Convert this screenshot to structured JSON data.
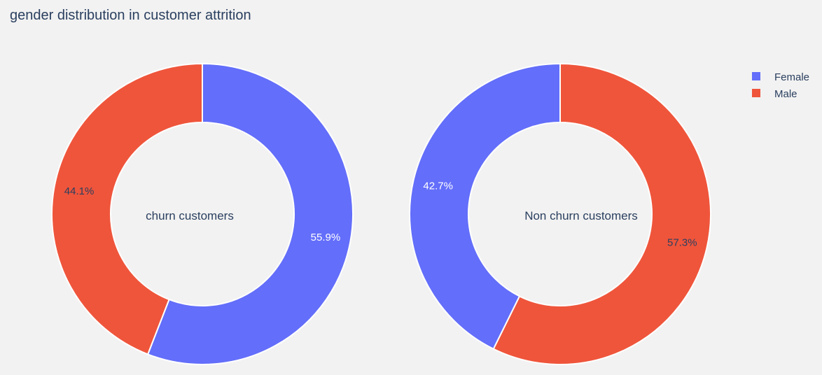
{
  "title": "gender distribution in customer attrition",
  "colors": {
    "Female": "#636efa",
    "Male": "#ef553b",
    "background": "#f2f2f2",
    "text": "#2a3f5f"
  },
  "legend": {
    "placement": "top-right",
    "items": [
      "Female",
      "Male"
    ]
  },
  "chart_data": [
    {
      "type": "pie",
      "hole": true,
      "center_label": "churn customers",
      "labels": [
        "Female",
        "Male"
      ],
      "values": [
        55.9,
        44.1
      ],
      "value_labels": [
        "55.9%",
        "44.1%"
      ]
    },
    {
      "type": "pie",
      "hole": true,
      "center_label": "Non churn customers",
      "labels": [
        "Female",
        "Male"
      ],
      "values": [
        42.7,
        57.3
      ],
      "value_labels": [
        "42.7%",
        "57.3%"
      ]
    }
  ]
}
